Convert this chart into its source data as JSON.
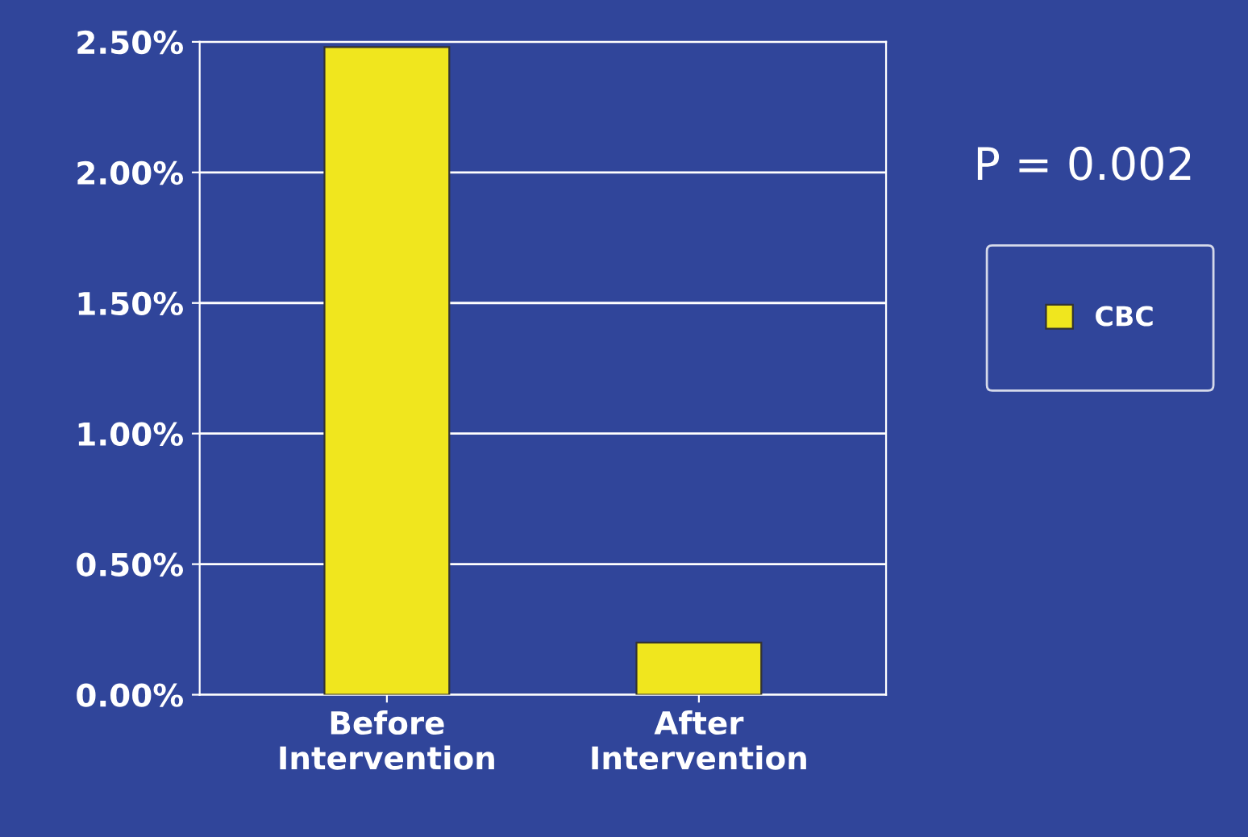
{
  "chart_data": {
    "type": "bar",
    "categories": [
      "Before\nIntervention",
      "After\nIntervention"
    ],
    "series": [
      {
        "name": "CBC",
        "color": "#f0e61e",
        "values": [
          2.48,
          0.2
        ]
      }
    ],
    "ylim": [
      0,
      2.5
    ],
    "yticks": [
      {
        "value": 0,
        "label": "0.00%"
      },
      {
        "value": 0.5,
        "label": "0.50%"
      },
      {
        "value": 1,
        "label": "1.00%"
      },
      {
        "value": 1.5,
        "label": "1.50%"
      },
      {
        "value": 2,
        "label": "2.00%"
      },
      {
        "value": 2.5,
        "label": "2.50%"
      }
    ],
    "grid": "y",
    "legend": "right",
    "annotations": [
      "P = 0.002"
    ]
  }
}
